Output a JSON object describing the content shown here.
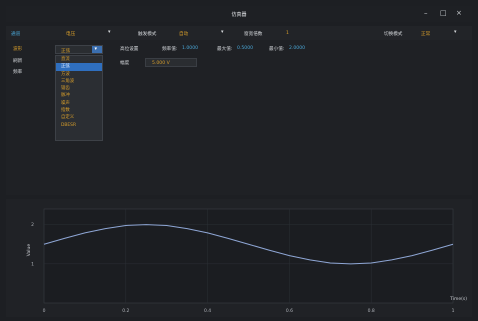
{
  "window": {
    "title": "仿真器",
    "minimize": "–",
    "maximize": "□",
    "close": "×"
  },
  "toolbar": {
    "channel_label": "通道",
    "channel_value": "电压",
    "trigger_label": "触发模式",
    "trigger_value": "自动",
    "window_label": "窗宽倍数",
    "window_value": "1",
    "mode_label": "切换模式",
    "mode_value": "正常"
  },
  "sidebar": {
    "items": [
      {
        "label": "波形"
      },
      {
        "label": "刷新"
      },
      {
        "label": "频率"
      }
    ]
  },
  "waveform_select": {
    "selected": "正弦",
    "options": [
      "直流",
      "正弦",
      "方波",
      "三角波",
      "锯齿",
      "脉冲",
      "噪声",
      "指数",
      "自定义",
      "DBESR"
    ]
  },
  "params": {
    "offset_label": "高位设置",
    "freq_label": "频率值:",
    "freq_value": "1.0000",
    "max_label": "最大值:",
    "max_value": "0.5000",
    "min_label": "最小值:",
    "min_value": "2.0000",
    "amp_label": "幅度",
    "amp_value": "5.000 V"
  },
  "colors": {
    "accent": "#d69d2b",
    "blue": "#4aa6d6",
    "line": "#8fa7d6",
    "background": "#1d1f23"
  },
  "chart_data": {
    "type": "line",
    "ylabel": "Value",
    "xlabel": "Time(s)",
    "xlim": [
      0,
      1
    ],
    "ylim": [
      0,
      2.4
    ],
    "xticks": [
      "0",
      "0.2",
      "0.4",
      "0.6",
      "0.8",
      "1"
    ],
    "yticks": [
      "1",
      "2"
    ],
    "grid": true,
    "series": [
      {
        "x": [
          0,
          0.05,
          0.1,
          0.15,
          0.2,
          0.25,
          0.3,
          0.35,
          0.4,
          0.45,
          0.5,
          0.55,
          0.6,
          0.65,
          0.7,
          0.75,
          0.8,
          0.85,
          0.9,
          0.95,
          1.0
        ],
        "values": [
          1.5,
          1.65,
          1.79,
          1.9,
          1.98,
          2.0,
          1.98,
          1.9,
          1.79,
          1.65,
          1.5,
          1.35,
          1.21,
          1.1,
          1.02,
          1.0,
          1.02,
          1.1,
          1.21,
          1.35,
          1.5
        ]
      }
    ]
  }
}
